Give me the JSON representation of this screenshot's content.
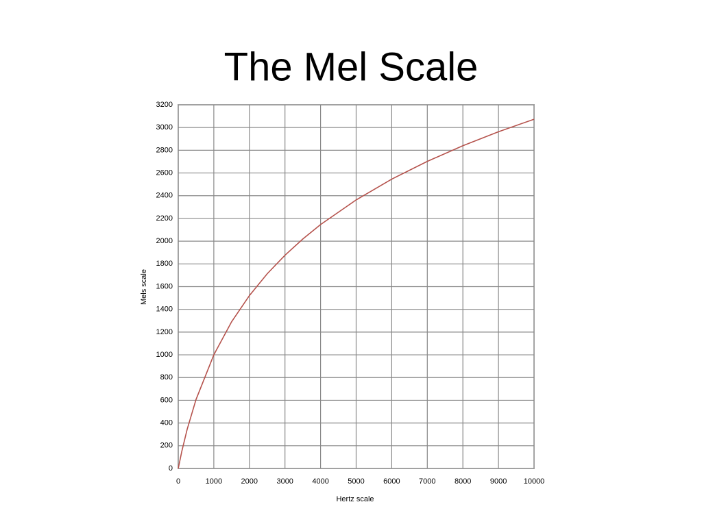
{
  "chart_data": {
    "type": "line",
    "title": "The Mel Scale",
    "x_label": "Hertz scale",
    "y_label": "Mels scale",
    "x": [
      0,
      100,
      250,
      500,
      1000,
      1500,
      2000,
      2500,
      3000,
      3500,
      4000,
      5000,
      6000,
      7000,
      8000,
      9000,
      10000
    ],
    "series": [
      {
        "name": "Mels",
        "color": "#b5524c",
        "values": [
          0,
          150,
          344,
          607,
          1000,
          1291,
          1521,
          1713,
          1876,
          2019,
          2146,
          2363,
          2546,
          2702,
          2840,
          2963,
          3073
        ]
      }
    ],
    "xlim": [
      0,
      10000
    ],
    "xticks": [
      0,
      1000,
      2000,
      3000,
      4000,
      5000,
      6000,
      7000,
      8000,
      9000,
      10000
    ],
    "ylim": [
      0,
      3200
    ],
    "yticks": [
      0,
      200,
      400,
      600,
      800,
      1000,
      1200,
      1400,
      1600,
      1800,
      2000,
      2200,
      2400,
      2600,
      2800,
      3000,
      3200
    ],
    "grid": true
  }
}
